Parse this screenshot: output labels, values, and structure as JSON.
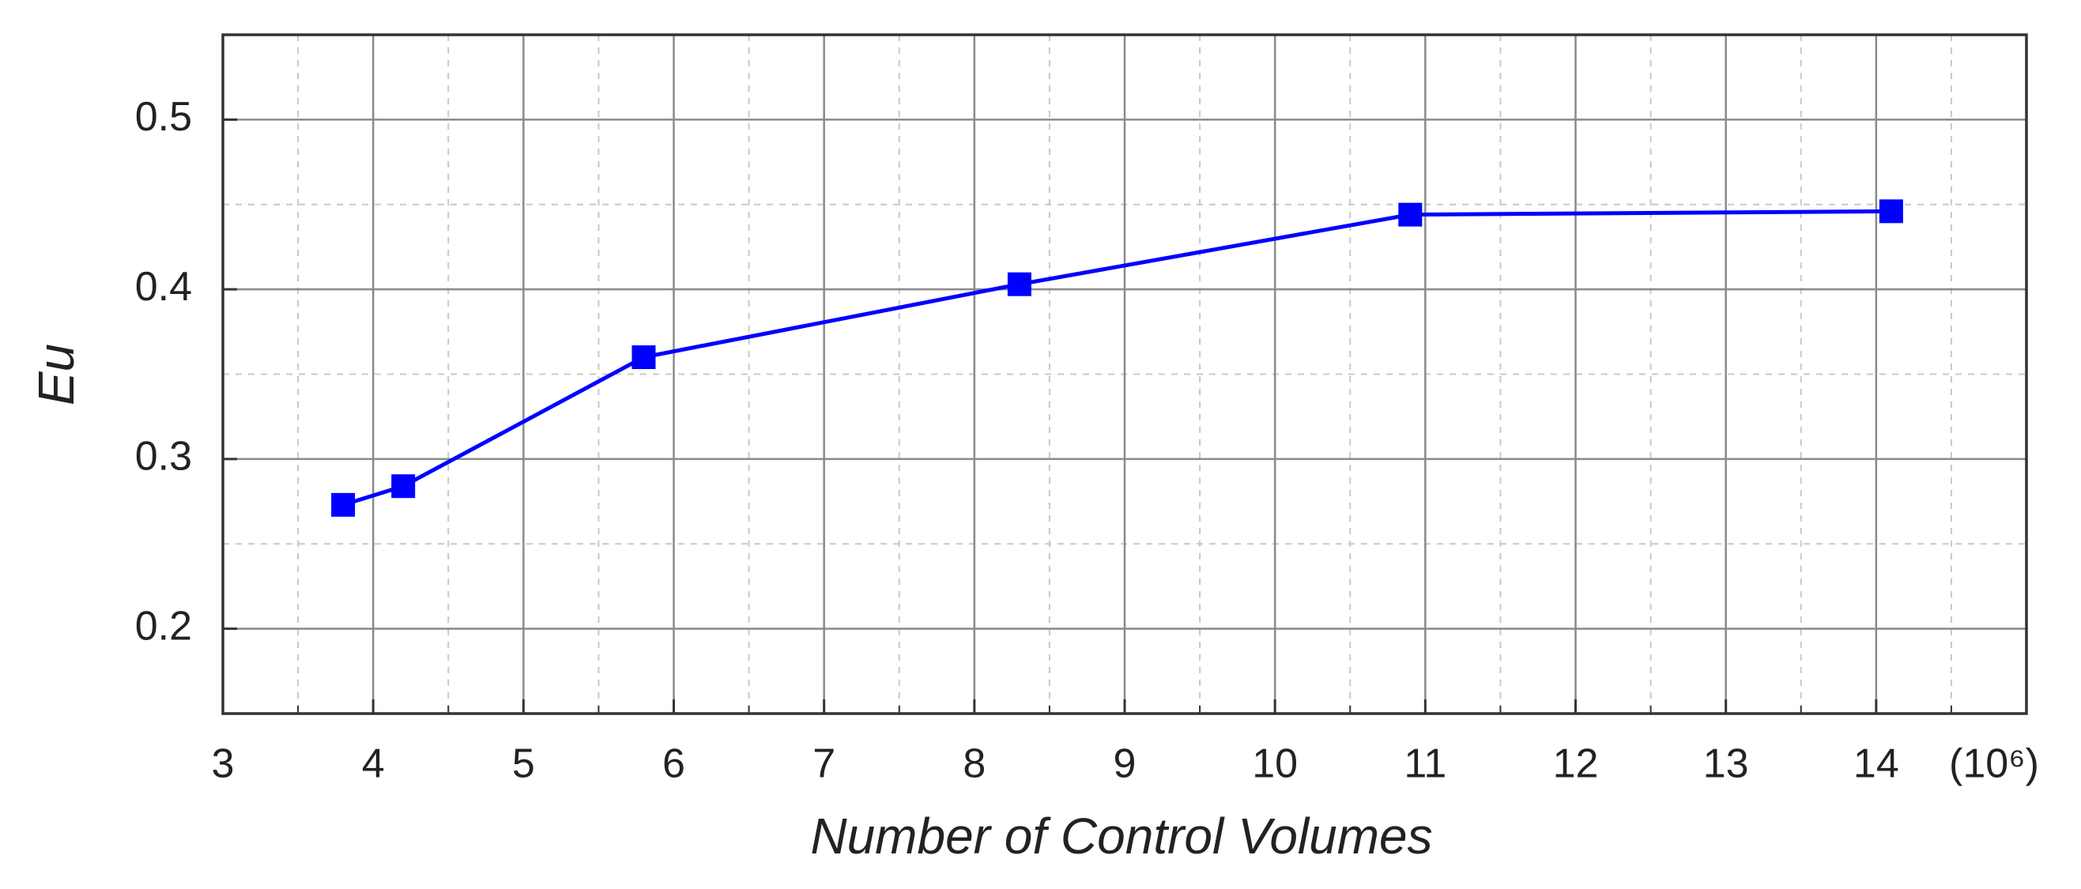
{
  "chart_data": {
    "type": "line",
    "x_label": "Number of Control Volumes",
    "y_label": "Eu",
    "x_unit": "(10⁶)",
    "x": [
      3.8,
      4.2,
      5.8,
      8.3,
      10.9,
      14.1
    ],
    "series": [
      {
        "name": "Eu",
        "color": "#0000ff",
        "values": [
          0.273,
          0.284,
          0.36,
          0.403,
          0.444,
          0.446
        ]
      }
    ],
    "xlim": [
      3,
      15
    ],
    "xticks": [
      3,
      4,
      5,
      6,
      7,
      8,
      9,
      10,
      11,
      12,
      13,
      14
    ],
    "xminorticks": [
      3.5,
      4.5,
      5.5,
      6.5,
      7.5,
      8.5,
      9.5,
      10.5,
      11.5,
      12.5,
      13.5,
      14.5
    ],
    "ylim": [
      0.15,
      0.55
    ],
    "yticks": [
      0.2,
      0.3,
      0.4,
      0.5
    ],
    "yminorticks": [
      0.25,
      0.35,
      0.45
    ],
    "grid": true,
    "minor_grid": true
  }
}
